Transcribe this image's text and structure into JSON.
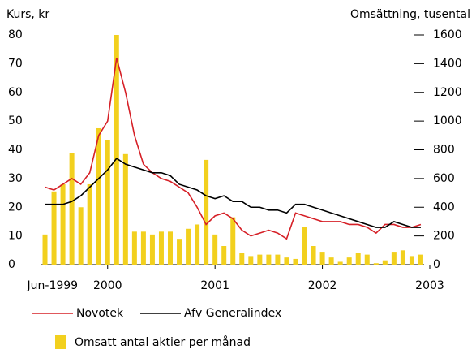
{
  "chart_data": {
    "type": "bar-line",
    "y_label": "Kurs, kr",
    "y2_label": "Omsättning, tusental",
    "xlim": [
      -7.5,
      36
    ],
    "xticks": [
      {
        "value": -7,
        "label": "Jun-1999"
      },
      {
        "value": 0,
        "label": "2000"
      },
      {
        "value": 12,
        "label": "2001"
      },
      {
        "value": 24,
        "label": "2002"
      },
      {
        "value": 36,
        "label": "2003"
      }
    ],
    "ylim": [
      0,
      80
    ],
    "yticks": [
      0,
      10,
      20,
      30,
      40,
      50,
      60,
      70,
      80
    ],
    "y2lim": [
      0,
      1600
    ],
    "y2ticks": [
      0,
      200,
      400,
      600,
      800,
      1000,
      1200,
      1400,
      1600
    ],
    "x": [
      -7,
      -6,
      -5,
      -4,
      -3,
      -2,
      -1,
      0,
      1,
      2,
      3,
      4,
      5,
      6,
      7,
      8,
      9,
      10,
      11,
      12,
      13,
      14,
      15,
      16,
      17,
      18,
      19,
      20,
      21,
      22,
      23,
      24,
      25,
      26,
      27,
      28,
      29,
      30,
      31,
      32,
      33,
      34,
      35
    ],
    "series": [
      {
        "name": "Omsatt antal aktier per månad",
        "kind": "bar",
        "axis": "y2",
        "color": "#f2d01e",
        "values": [
          210,
          510,
          560,
          780,
          400,
          560,
          950,
          870,
          1600,
          770,
          230,
          230,
          210,
          230,
          230,
          180,
          250,
          280,
          730,
          210,
          130,
          330,
          80,
          60,
          70,
          70,
          70,
          50,
          40,
          260,
          130,
          90,
          50,
          20,
          50,
          80,
          70,
          10,
          30,
          90,
          100,
          60,
          70
        ]
      },
      {
        "name": "Novotek",
        "kind": "line",
        "color": "#d62027",
        "values": [
          27,
          26,
          28,
          30,
          28,
          32,
          45,
          50,
          72,
          60,
          45,
          35,
          32,
          30,
          29,
          27,
          25,
          20,
          14,
          17,
          18,
          16,
          12,
          10,
          11,
          12,
          11,
          9,
          18,
          17,
          16,
          15,
          15,
          15,
          14,
          14,
          13,
          11,
          14,
          14,
          13,
          13,
          14
        ]
      },
      {
        "name": "Afv Generalindex",
        "kind": "line",
        "color": "#000000",
        "values": [
          21,
          21,
          21,
          22,
          24,
          27,
          30,
          33,
          37,
          35,
          34,
          33,
          32,
          32,
          31,
          28,
          27,
          26,
          24,
          23,
          24,
          22,
          22,
          20,
          20,
          19,
          19,
          18,
          21,
          21,
          20,
          19,
          18,
          17,
          16,
          15,
          14,
          13,
          13,
          15,
          14,
          13,
          13
        ]
      }
    ]
  }
}
